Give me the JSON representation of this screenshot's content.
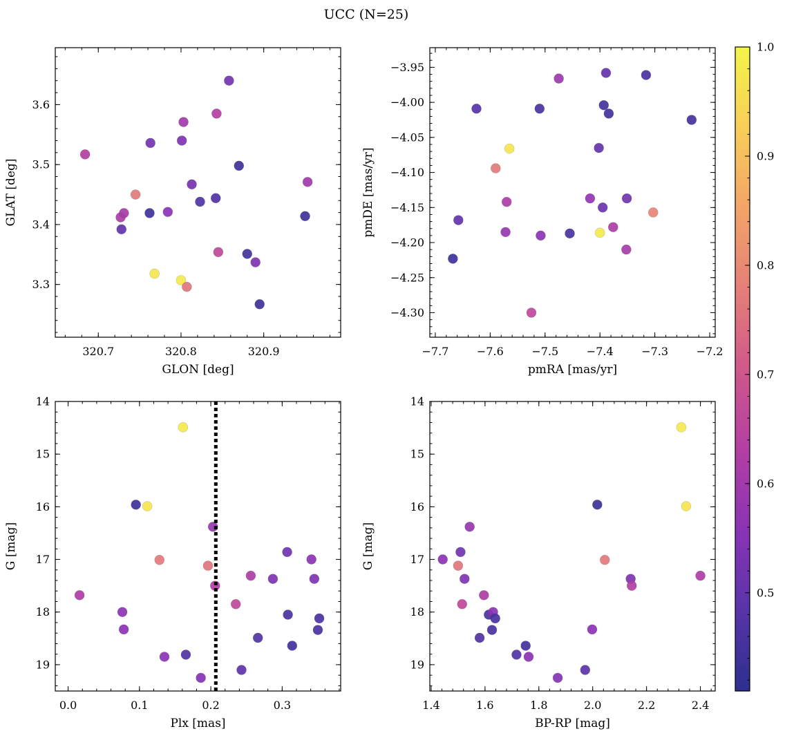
{
  "chart_data": {
    "type": "scatter",
    "title": "UCC (N=25)",
    "colorbar": {
      "range": [
        0.41,
        1.0
      ],
      "ticks": [
        0.5,
        0.6,
        0.7,
        0.8,
        0.9,
        1.0
      ],
      "tick_labels": [
        "0.5",
        "0.6",
        "0.7",
        "0.8",
        "0.9",
        "1.0"
      ],
      "colormap": "plasma",
      "stops": [
        "#2c2f8e",
        "#5834a8",
        "#8a33b5",
        "#b33fa3",
        "#d0588a",
        "#e57f78",
        "#f3a468",
        "#f8ce58",
        "#f3f54a"
      ]
    },
    "panels": [
      {
        "id": "glon-glat",
        "xlabel": "GLON [deg]",
        "ylabel": "GLAT [deg]",
        "xlim": [
          320.648,
          320.993
        ],
        "ylim": [
          3.212,
          3.695
        ],
        "xticks": [
          320.7,
          320.8,
          320.9
        ],
        "xtick_labels": [
          "320.7",
          "320.8",
          "320.9"
        ],
        "yticks": [
          3.3,
          3.4,
          3.5,
          3.6
        ],
        "ytick_labels": [
          "3.3",
          "3.4",
          "3.5",
          "3.6"
        ],
        "invert_y": false,
        "vline": null,
        "points": [
          {
            "x": 320.684,
            "y": 3.517,
            "c": 0.63
          },
          {
            "x": 320.727,
            "y": 3.412,
            "c": 0.62
          },
          {
            "x": 320.731,
            "y": 3.419,
            "c": 0.61
          },
          {
            "x": 320.728,
            "y": 3.392,
            "c": 0.5
          },
          {
            "x": 320.745,
            "y": 3.45,
            "c": 0.77
          },
          {
            "x": 320.762,
            "y": 3.419,
            "c": 0.44
          },
          {
            "x": 320.763,
            "y": 3.536,
            "c": 0.52
          },
          {
            "x": 320.768,
            "y": 3.318,
            "c": 0.97
          },
          {
            "x": 320.784,
            "y": 3.421,
            "c": 0.56
          },
          {
            "x": 320.8,
            "y": 3.307,
            "c": 0.98
          },
          {
            "x": 320.801,
            "y": 3.54,
            "c": 0.54
          },
          {
            "x": 320.803,
            "y": 3.571,
            "c": 0.6
          },
          {
            "x": 320.807,
            "y": 3.296,
            "c": 0.76
          },
          {
            "x": 320.813,
            "y": 3.467,
            "c": 0.53
          },
          {
            "x": 320.823,
            "y": 3.438,
            "c": 0.47
          },
          {
            "x": 320.842,
            "y": 3.444,
            "c": 0.47
          },
          {
            "x": 320.843,
            "y": 3.585,
            "c": 0.63
          },
          {
            "x": 320.845,
            "y": 3.354,
            "c": 0.66
          },
          {
            "x": 320.858,
            "y": 3.64,
            "c": 0.52
          },
          {
            "x": 320.87,
            "y": 3.498,
            "c": 0.44
          },
          {
            "x": 320.88,
            "y": 3.351,
            "c": 0.45
          },
          {
            "x": 320.89,
            "y": 3.337,
            "c": 0.54
          },
          {
            "x": 320.895,
            "y": 3.267,
            "c": 0.44
          },
          {
            "x": 320.95,
            "y": 3.414,
            "c": 0.44
          },
          {
            "x": 320.953,
            "y": 3.471,
            "c": 0.6
          }
        ]
      },
      {
        "id": "pmra-pmde",
        "xlabel": "pmRA [mas/yr]",
        "ylabel": "pmDE [mas/yr]",
        "xlim": [
          -7.71,
          -7.19
        ],
        "ylim": [
          -4.335,
          -3.922
        ],
        "xticks": [
          -7.7,
          -7.6,
          -7.5,
          -7.4,
          -7.3,
          -7.2
        ],
        "xtick_labels": [
          "−7.7",
          "−7.6",
          "−7.5",
          "−7.4",
          "−7.3",
          "−7.2"
        ],
        "yticks": [
          -4.3,
          -4.25,
          -4.2,
          -4.15,
          -4.1,
          -4.05,
          -4.0,
          -3.95
        ],
        "ytick_labels": [
          "−4.30",
          "−4.25",
          "−4.20",
          "−4.15",
          "−4.10",
          "−4.05",
          "−4.00",
          "−3.95"
        ],
        "invert_y": false,
        "vline": null,
        "points": [
          {
            "x": -7.668,
            "y": -4.223,
            "c": 0.44
          },
          {
            "x": -7.658,
            "y": -4.168,
            "c": 0.5
          },
          {
            "x": -7.625,
            "y": -4.009,
            "c": 0.48
          },
          {
            "x": -7.59,
            "y": -4.094,
            "c": 0.77
          },
          {
            "x": -7.572,
            "y": -4.185,
            "c": 0.58
          },
          {
            "x": -7.57,
            "y": -4.142,
            "c": 0.62
          },
          {
            "x": -7.565,
            "y": -4.066,
            "c": 0.97
          },
          {
            "x": -7.525,
            "y": -4.3,
            "c": 0.66
          },
          {
            "x": -7.51,
            "y": -4.009,
            "c": 0.46
          },
          {
            "x": -7.508,
            "y": -4.19,
            "c": 0.56
          },
          {
            "x": -7.475,
            "y": -3.966,
            "c": 0.59
          },
          {
            "x": -7.455,
            "y": -4.187,
            "c": 0.46
          },
          {
            "x": -7.418,
            "y": -4.137,
            "c": 0.57
          },
          {
            "x": -7.402,
            "y": -4.065,
            "c": 0.5
          },
          {
            "x": -7.4,
            "y": -4.186,
            "c": 0.98
          },
          {
            "x": -7.395,
            "y": -4.15,
            "c": 0.51
          },
          {
            "x": -7.393,
            "y": -4.004,
            "c": 0.45
          },
          {
            "x": -7.389,
            "y": -3.958,
            "c": 0.5
          },
          {
            "x": -7.384,
            "y": -4.016,
            "c": 0.45
          },
          {
            "x": -7.376,
            "y": -4.178,
            "c": 0.62
          },
          {
            "x": -7.352,
            "y": -4.21,
            "c": 0.61
          },
          {
            "x": -7.351,
            "y": -4.137,
            "c": 0.52
          },
          {
            "x": -7.316,
            "y": -3.961,
            "c": 0.46
          },
          {
            "x": -7.303,
            "y": -4.157,
            "c": 0.79
          },
          {
            "x": -7.233,
            "y": -4.025,
            "c": 0.45
          }
        ]
      },
      {
        "id": "plx-g",
        "xlabel": "Plx [mas]",
        "ylabel": "G [mag]",
        "xlim": [
          -0.018,
          0.382
        ],
        "ylim": [
          19.5,
          14.0
        ],
        "xticks": [
          0.0,
          0.1,
          0.2,
          0.3
        ],
        "xtick_labels": [
          "0.0",
          "0.1",
          "0.2",
          "0.3"
        ],
        "yticks": [
          14,
          15,
          16,
          17,
          18,
          19
        ],
        "ytick_labels": [
          "14",
          "15",
          "16",
          "17",
          "18",
          "19"
        ],
        "invert_y": true,
        "vline": 0.207,
        "points": [
          {
            "x": 0.016,
            "y": 17.68,
            "c": 0.62
          },
          {
            "x": 0.076,
            "y": 18.0,
            "c": 0.56
          },
          {
            "x": 0.078,
            "y": 18.33,
            "c": 0.56
          },
          {
            "x": 0.095,
            "y": 15.96,
            "c": 0.44
          },
          {
            "x": 0.111,
            "y": 15.99,
            "c": 0.97
          },
          {
            "x": 0.128,
            "y": 17.01,
            "c": 0.77
          },
          {
            "x": 0.135,
            "y": 18.85,
            "c": 0.56
          },
          {
            "x": 0.161,
            "y": 14.49,
            "c": 0.98
          },
          {
            "x": 0.165,
            "y": 18.81,
            "c": 0.47
          },
          {
            "x": 0.186,
            "y": 19.25,
            "c": 0.55
          },
          {
            "x": 0.196,
            "y": 17.12,
            "c": 0.76
          },
          {
            "x": 0.203,
            "y": 16.38,
            "c": 0.58
          },
          {
            "x": 0.206,
            "y": 17.5,
            "c": 0.63
          },
          {
            "x": 0.235,
            "y": 17.85,
            "c": 0.66
          },
          {
            "x": 0.243,
            "y": 19.1,
            "c": 0.49
          },
          {
            "x": 0.256,
            "y": 17.31,
            "c": 0.62
          },
          {
            "x": 0.266,
            "y": 18.49,
            "c": 0.47
          },
          {
            "x": 0.287,
            "y": 17.37,
            "c": 0.54
          },
          {
            "x": 0.307,
            "y": 16.86,
            "c": 0.52
          },
          {
            "x": 0.308,
            "y": 18.05,
            "c": 0.46
          },
          {
            "x": 0.314,
            "y": 18.64,
            "c": 0.45
          },
          {
            "x": 0.341,
            "y": 17.0,
            "c": 0.56
          },
          {
            "x": 0.345,
            "y": 17.37,
            "c": 0.54
          },
          {
            "x": 0.35,
            "y": 18.34,
            "c": 0.46
          },
          {
            "x": 0.352,
            "y": 18.12,
            "c": 0.46
          }
        ]
      },
      {
        "id": "bprp-g",
        "xlabel": "BP-RP [mag]",
        "ylabel": "G [mag]",
        "xlim": [
          1.395,
          2.455
        ],
        "ylim": [
          19.5,
          14.0
        ],
        "xticks": [
          1.4,
          1.6,
          1.8,
          2.0,
          2.2,
          2.4
        ],
        "xtick_labels": [
          "1.4",
          "1.6",
          "1.8",
          "2.0",
          "2.2",
          "2.4"
        ],
        "yticks": [
          14,
          15,
          16,
          17,
          18,
          19
        ],
        "ytick_labels": [
          "14",
          "15",
          "16",
          "17",
          "18",
          "19"
        ],
        "invert_y": true,
        "vline": null,
        "points": [
          {
            "x": 1.443,
            "y": 17.0,
            "c": 0.56
          },
          {
            "x": 1.5,
            "y": 17.12,
            "c": 0.76
          },
          {
            "x": 1.509,
            "y": 16.86,
            "c": 0.52
          },
          {
            "x": 1.515,
            "y": 17.85,
            "c": 0.66
          },
          {
            "x": 1.524,
            "y": 17.37,
            "c": 0.54
          },
          {
            "x": 1.543,
            "y": 16.38,
            "c": 0.58
          },
          {
            "x": 1.58,
            "y": 18.49,
            "c": 0.47
          },
          {
            "x": 1.596,
            "y": 17.68,
            "c": 0.62
          },
          {
            "x": 1.614,
            "y": 18.05,
            "c": 0.46
          },
          {
            "x": 1.626,
            "y": 18.34,
            "c": 0.46
          },
          {
            "x": 1.63,
            "y": 18.0,
            "c": 0.56
          },
          {
            "x": 1.638,
            "y": 18.12,
            "c": 0.46
          },
          {
            "x": 1.717,
            "y": 18.81,
            "c": 0.47
          },
          {
            "x": 1.751,
            "y": 18.64,
            "c": 0.45
          },
          {
            "x": 1.762,
            "y": 18.85,
            "c": 0.56
          },
          {
            "x": 1.87,
            "y": 19.25,
            "c": 0.55
          },
          {
            "x": 1.972,
            "y": 19.1,
            "c": 0.49
          },
          {
            "x": 1.998,
            "y": 18.33,
            "c": 0.56
          },
          {
            "x": 2.017,
            "y": 15.96,
            "c": 0.44
          },
          {
            "x": 2.045,
            "y": 17.01,
            "c": 0.77
          },
          {
            "x": 2.141,
            "y": 17.37,
            "c": 0.54
          },
          {
            "x": 2.145,
            "y": 17.5,
            "c": 0.63
          },
          {
            "x": 2.329,
            "y": 14.49,
            "c": 0.98
          },
          {
            "x": 2.347,
            "y": 15.99,
            "c": 0.97
          },
          {
            "x": 2.4,
            "y": 17.31,
            "c": 0.62
          }
        ]
      }
    ]
  }
}
